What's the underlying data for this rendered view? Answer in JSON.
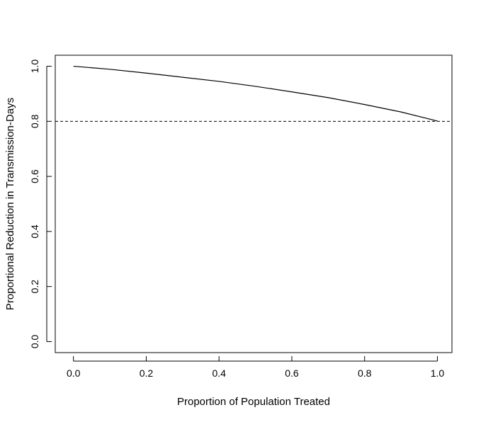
{
  "chart_data": {
    "type": "line",
    "title": "",
    "xlabel": "Proportion of Population Treated",
    "ylabel": "Proportional Reduction in Transmission-Days",
    "xlim": [
      -0.05,
      1.04
    ],
    "ylim": [
      -0.04,
      1.04
    ],
    "x_ticks": [
      0.0,
      0.2,
      0.4,
      0.6,
      0.8,
      1.0
    ],
    "x_tick_labels": [
      "0.0",
      "0.2",
      "0.4",
      "0.6",
      "0.8",
      "1.0"
    ],
    "y_ticks": [
      0.0,
      0.2,
      0.4,
      0.6,
      0.8,
      1.0
    ],
    "y_tick_labels": [
      "0.0",
      "0.2",
      "0.4",
      "0.6",
      "0.8",
      "1.0"
    ],
    "grid": false,
    "series": [
      {
        "line_style": "solid",
        "color": "#000000",
        "x": [
          0.0,
          0.1,
          0.2,
          0.3,
          0.4,
          0.5,
          0.6,
          0.7,
          0.8,
          0.9,
          1.0
        ],
        "y": [
          1.0,
          0.989,
          0.975,
          0.96,
          0.945,
          0.927,
          0.907,
          0.886,
          0.861,
          0.834,
          0.801
        ]
      }
    ],
    "reference_lines": [
      {
        "orientation": "horizontal",
        "y": 0.8,
        "line_style": "dashed",
        "color": "#000000"
      }
    ]
  }
}
